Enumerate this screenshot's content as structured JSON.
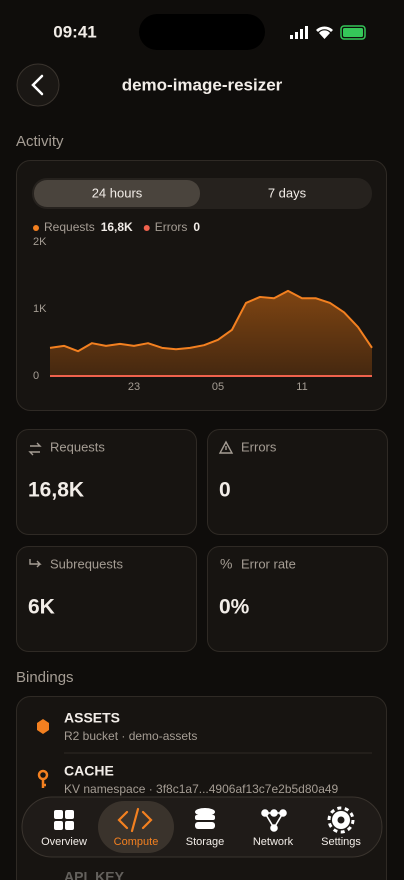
{
  "status_bar": {
    "time": "09:41"
  },
  "header": {
    "title": "demo-image-resizer"
  },
  "activity": {
    "heading": "Activity",
    "segments": [
      "24 hours",
      "7 days"
    ],
    "active_segment": 0
  },
  "chart_data": {
    "type": "area",
    "categories": [
      null,
      null,
      null,
      null,
      null,
      null,
      "23",
      null,
      null,
      null,
      null,
      null,
      "05",
      null,
      null,
      null,
      null,
      null,
      "11",
      null,
      null,
      null,
      null,
      null
    ],
    "series": [
      {
        "name": "Requests",
        "total": "16,8K",
        "color": "#f38020",
        "values": [
          420,
          450,
          370,
          490,
          450,
          480,
          450,
          490,
          420,
          400,
          420,
          460,
          540,
          690,
          1090,
          1180,
          1160,
          1270,
          1160,
          1160,
          1090,
          950,
          730,
          420
        ]
      },
      {
        "name": "Errors",
        "total": "0",
        "color": "#f0624d",
        "values": [
          0,
          0,
          0,
          0,
          0,
          0,
          0,
          0,
          0,
          0,
          0,
          0,
          0,
          0,
          0,
          0,
          0,
          0,
          0,
          0,
          0,
          0,
          0,
          0
        ]
      }
    ],
    "ylim": [
      0,
      2000
    ],
    "yticks": [
      0,
      {
        "value": 1000,
        "label": "1K"
      },
      {
        "value": 2000,
        "label": "2K"
      }
    ],
    "grid": false
  },
  "stats": [
    {
      "label": "Requests",
      "value": "16,8K"
    },
    {
      "label": "Errors",
      "value": "0"
    },
    {
      "label": "Subrequests",
      "value": "6K"
    },
    {
      "label": "Error rate",
      "value": "0%"
    }
  ],
  "bindings": {
    "heading": "Bindings",
    "items": [
      {
        "name": "ASSETS",
        "detail": "R2 bucket · demo-assets"
      },
      {
        "name": "CACHE",
        "detail": "KV namespace · 3f8c1a7...4906af13c7e2b5d80a49"
      },
      {
        "name": "API_KEY"
      }
    ]
  },
  "tab_bar": {
    "tabs": [
      "Overview",
      "Compute",
      "Storage",
      "Network",
      "Settings"
    ],
    "active": 1
  }
}
